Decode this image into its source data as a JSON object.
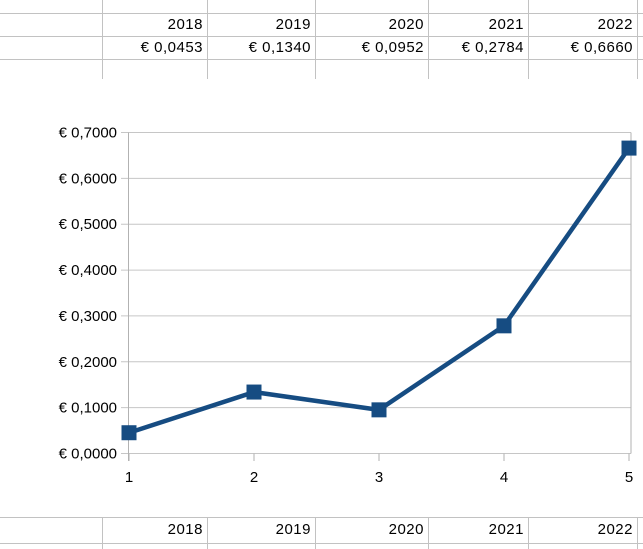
{
  "colors": {
    "series_blue": "#164C82",
    "chart_gridline": "#c6c6c6",
    "chart_axis": "#b2b2b2",
    "sheet_gridline": "#c2c2c2",
    "text": "#000000"
  },
  "top_table": {
    "years": [
      "2018",
      "2019",
      "2020",
      "2021",
      "2022"
    ],
    "values": [
      "€ 0,0453",
      "€ 0,1340",
      "€ 0,0952",
      "€ 0,2784",
      "€ 0,6660"
    ]
  },
  "bottom_table": {
    "years": [
      "2018",
      "2019",
      "2020",
      "2021",
      "2022"
    ]
  },
  "chart_data": {
    "type": "line",
    "x": [
      1,
      2,
      3,
      4,
      5
    ],
    "xtick_labels": [
      "1",
      "2",
      "3",
      "4",
      "5"
    ],
    "series": [
      {
        "name": "",
        "values": [
          0.0453,
          0.134,
          0.0952,
          0.2784,
          0.666
        ]
      }
    ],
    "yticks": [
      0.0,
      0.1,
      0.2,
      0.3,
      0.4,
      0.5,
      0.6,
      0.7
    ],
    "ytick_labels": [
      "€ 0,0000",
      "€ 0,1000",
      "€ 0,2000",
      "€ 0,3000",
      "€ 0,4000",
      "€ 0,5000",
      "€ 0,6000",
      "€ 0,7000"
    ],
    "ylim": [
      0,
      0.7
    ],
    "title": "",
    "xlabel": "",
    "ylabel": "",
    "grid": true,
    "legend": false,
    "marker": "square"
  }
}
